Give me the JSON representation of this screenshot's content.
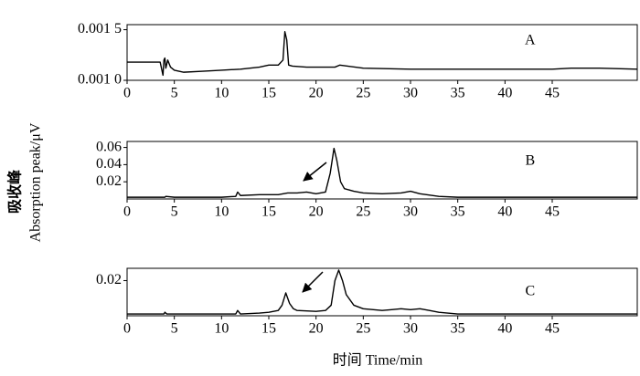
{
  "x_label": "时间 Time/min",
  "y_label": [
    "吸收峰",
    "Absorption peak/μV"
  ],
  "chart_data": [
    {
      "type": "line",
      "annotations": [
        "A"
      ],
      "color": "#000000",
      "xlim": [
        0,
        54
      ],
      "xticks": [
        0,
        5,
        10,
        15,
        20,
        25,
        30,
        35,
        40,
        45
      ],
      "ylim": [
        0.001,
        0.00155
      ],
      "yticks": [
        {
          "value": 0.001,
          "label": "0.001 0"
        },
        {
          "value": 0.0015,
          "label": "0.001 5"
        }
      ],
      "x": [
        0,
        3.5,
        3.8,
        3.9,
        4.0,
        4.1,
        4.3,
        4.6,
        5,
        6,
        8,
        10,
        12,
        14,
        15,
        16,
        16.5,
        16.7,
        16.9,
        17.1,
        17.5,
        19,
        22,
        22.5,
        25,
        30,
        35,
        40,
        45,
        47,
        50,
        54
      ],
      "values": [
        0.00118,
        0.00118,
        0.00105,
        0.0012,
        0.00122,
        0.00112,
        0.0012,
        0.00113,
        0.0011,
        0.00108,
        0.00109,
        0.0011,
        0.00111,
        0.00113,
        0.00115,
        0.00115,
        0.0012,
        0.00148,
        0.0014,
        0.00115,
        0.00114,
        0.00113,
        0.00113,
        0.00115,
        0.00112,
        0.00111,
        0.00111,
        0.00111,
        0.00111,
        0.00112,
        0.00112,
        0.00111
      ]
    },
    {
      "type": "line",
      "annotations": [
        "B"
      ],
      "color": "#000000",
      "xlim": [
        0,
        54
      ],
      "xticks": [
        0,
        5,
        10,
        15,
        20,
        25,
        30,
        35,
        40,
        45
      ],
      "ylim": [
        0,
        0.067
      ],
      "yticks": [
        0.02,
        0.04,
        0.06
      ],
      "x": [
        0,
        4,
        4.1,
        5,
        10,
        11.5,
        11.7,
        12,
        14,
        16,
        17,
        18,
        19,
        20,
        21,
        21.5,
        21.9,
        22.2,
        22.6,
        23,
        24,
        25,
        27,
        29,
        30,
        31,
        33,
        35,
        40,
        45,
        50,
        54
      ],
      "values": [
        0.002,
        0.002,
        0.003,
        0.002,
        0.002,
        0.003,
        0.008,
        0.004,
        0.005,
        0.005,
        0.007,
        0.007,
        0.008,
        0.006,
        0.008,
        0.03,
        0.059,
        0.045,
        0.02,
        0.012,
        0.009,
        0.007,
        0.006,
        0.007,
        0.009,
        0.006,
        0.003,
        0.002,
        0.002,
        0.002,
        0.002,
        0.002
      ]
    },
    {
      "type": "line",
      "annotations": [
        "C"
      ],
      "color": "#000000",
      "xlim": [
        0,
        54
      ],
      "xticks": [
        0,
        5,
        10,
        15,
        20,
        25,
        30,
        35,
        40,
        45
      ],
      "ylim": [
        0,
        0.027
      ],
      "yticks": [
        0.02
      ],
      "x": [
        0,
        3.9,
        4.0,
        4.2,
        6,
        10,
        11.5,
        11.7,
        12,
        14,
        15,
        16,
        16.4,
        16.8,
        17.2,
        17.6,
        18,
        20,
        21,
        21.6,
        22,
        22.4,
        22.8,
        23.2,
        24,
        25,
        27,
        28,
        29,
        30,
        31,
        32,
        33,
        35,
        40,
        45,
        50,
        54
      ],
      "values": [
        0.001,
        0.001,
        0.002,
        0.001,
        0.001,
        0.001,
        0.001,
        0.003,
        0.001,
        0.0015,
        0.002,
        0.003,
        0.006,
        0.013,
        0.007,
        0.004,
        0.003,
        0.0025,
        0.003,
        0.006,
        0.02,
        0.026,
        0.02,
        0.012,
        0.006,
        0.004,
        0.003,
        0.0035,
        0.004,
        0.0035,
        0.004,
        0.003,
        0.002,
        0.001,
        0.001,
        0.001,
        0.001,
        0.001
      ]
    }
  ]
}
